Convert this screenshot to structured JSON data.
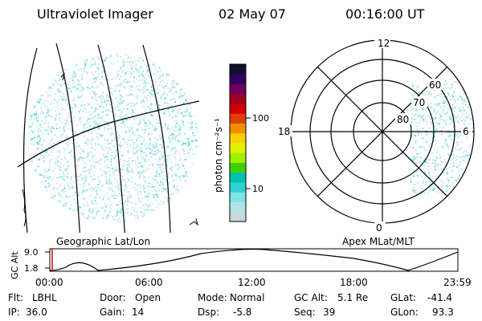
{
  "header": {
    "title": "Ultraviolet Imager",
    "date": "02 May 07",
    "time": "00:16:00 UT"
  },
  "geo_panel": {
    "label": "Geographic Lat/Lon"
  },
  "colorbar": {
    "unit_label": "photon cm⁻²s⁻¹",
    "ticks": [
      "100",
      "10"
    ],
    "colors": [
      "#c8d8dc",
      "#b0e4e8",
      "#7ee4e6",
      "#30d0d4",
      "#00c0b0",
      "#40d000",
      "#a0f000",
      "#e0f000",
      "#f8d000",
      "#f09000",
      "#e04000",
      "#d00000",
      "#a00020",
      "#700060",
      "#300060",
      "#101030"
    ]
  },
  "polar_panel": {
    "label": "Apex MLat/MLT",
    "mlt_labels": {
      "top": "12",
      "left": "18",
      "right": "6",
      "bottom": "0"
    },
    "lat_labels": [
      "60",
      "70",
      "80"
    ]
  },
  "altitude_plot": {
    "ylabel": "GC Alt",
    "yticks": [
      "9.0",
      "1.8"
    ],
    "xticks": [
      "00:00",
      "06:00",
      "12:00",
      "18:00",
      "23:59"
    ]
  },
  "info": {
    "row1": [
      {
        "label": "Flt:",
        "value": "LBHL"
      },
      {
        "label": "Door:",
        "value": "Open"
      },
      {
        "label": "Mode:",
        "value": "Normal"
      },
      {
        "label": "GC Alt:",
        "value": "5.1 Re"
      },
      {
        "label": "GLat:",
        "value": "-41.4"
      }
    ],
    "row2": [
      {
        "label": "IP:",
        "value": "36.0"
      },
      {
        "label": "Gain:",
        "value": "14"
      },
      {
        "label": "Dsp:",
        "value": "-5.8"
      },
      {
        "label": "Seq:",
        "value": "39"
      },
      {
        "label": "GLon:",
        "value": "93.3"
      }
    ]
  }
}
